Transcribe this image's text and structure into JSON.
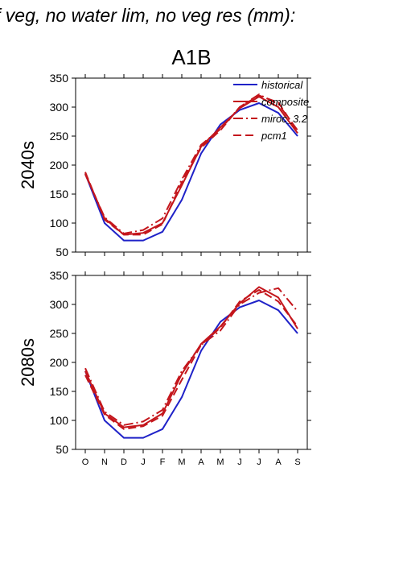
{
  "figure_title": "f veg, no water lim, no veg res (mm):",
  "scenario": "A1B",
  "colors": {
    "historical": "#1f22c8",
    "model": "#c4161c"
  },
  "chart_data": [
    {
      "type": "line",
      "panel_label": "2040s",
      "categories": [
        "O",
        "N",
        "D",
        "J",
        "F",
        "M",
        "A",
        "M",
        "J",
        "J",
        "A",
        "S"
      ],
      "ylim": [
        50,
        350
      ],
      "yticks": [
        50,
        100,
        150,
        200,
        250,
        300,
        350
      ],
      "legend": {
        "position": "top-right",
        "entries": [
          "historical",
          "composite",
          "miroc_3.2",
          "pcm1"
        ]
      },
      "series": [
        {
          "name": "historical",
          "style": "solid-blue",
          "values": [
            185,
            100,
            70,
            70,
            85,
            140,
            220,
            270,
            295,
            307,
            290,
            250
          ]
        },
        {
          "name": "composite",
          "style": "solid-red",
          "values": [
            186,
            108,
            80,
            83,
            100,
            165,
            232,
            265,
            298,
            318,
            300,
            255
          ]
        },
        {
          "name": "miroc_3.2",
          "style": "dashdot-red",
          "values": [
            184,
            110,
            82,
            88,
            108,
            175,
            235,
            262,
            300,
            322,
            305,
            260
          ]
        },
        {
          "name": "pcm1",
          "style": "dashed-red",
          "values": [
            188,
            106,
            80,
            80,
            98,
            170,
            230,
            260,
            300,
            320,
            308,
            258
          ]
        }
      ]
    },
    {
      "type": "line",
      "panel_label": "2080s",
      "categories": [
        "O",
        "N",
        "D",
        "J",
        "F",
        "M",
        "A",
        "M",
        "J",
        "J",
        "A",
        "S"
      ],
      "ylim": [
        50,
        350
      ],
      "yticks": [
        50,
        100,
        150,
        200,
        250,
        300,
        350
      ],
      "series": [
        {
          "name": "historical",
          "style": "solid-blue",
          "values": [
            185,
            100,
            70,
            70,
            85,
            140,
            220,
            270,
            295,
            307,
            290,
            250
          ]
        },
        {
          "name": "composite",
          "style": "solid-red",
          "values": [
            185,
            112,
            88,
            92,
            112,
            180,
            232,
            262,
            302,
            330,
            312,
            258
          ]
        },
        {
          "name": "miroc_3.2",
          "style": "dashdot-red",
          "values": [
            190,
            115,
            92,
            98,
            118,
            185,
            230,
            255,
            300,
            320,
            328,
            288
          ]
        },
        {
          "name": "pcm1",
          "style": "dashed-red",
          "values": [
            178,
            110,
            85,
            90,
            108,
            170,
            230,
            260,
            305,
            325,
            305,
            262
          ]
        }
      ]
    }
  ]
}
